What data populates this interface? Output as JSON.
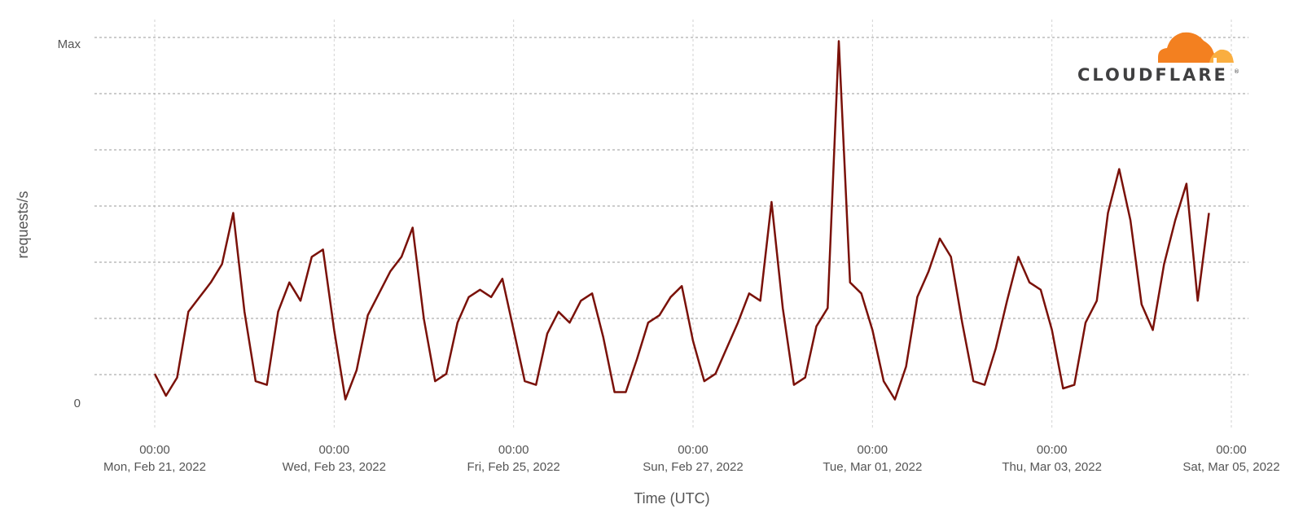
{
  "chart_data": {
    "type": "line",
    "title": "",
    "xlabel": "Time (UTC)",
    "ylabel": "requests/s",
    "y_tick_labels": [
      "0",
      "Max"
    ],
    "ylim": [
      0,
      1
    ],
    "xlim": [
      "2022-02-21T00:00",
      "2022-03-05T00:00"
    ],
    "x_ticks": [
      {
        "time": "00:00",
        "date": "Mon, Feb 21, 2022",
        "t": "2022-02-21T00:00"
      },
      {
        "time": "00:00",
        "date": "Wed, Feb 23, 2022",
        "t": "2022-02-23T00:00"
      },
      {
        "time": "00:00",
        "date": "Fri, Feb 25, 2022",
        "t": "2022-02-25T00:00"
      },
      {
        "time": "00:00",
        "date": "Sun, Feb 27, 2022",
        "t": "2022-02-27T00:00"
      },
      {
        "time": "00:00",
        "date": "Tue, Mar 01, 2022",
        "t": "2022-03-01T00:00"
      },
      {
        "time": "00:00",
        "date": "Thu, Mar 03, 2022",
        "t": "2022-03-03T00:00"
      },
      {
        "time": "00:00",
        "date": "Sat, Mar 05, 2022",
        "t": "2022-03-05T00:00"
      }
    ],
    "grid": true,
    "series": [
      {
        "color": "#7a1109",
        "x": [
          "2022-02-21T00:00",
          "2022-02-21T03:00",
          "2022-02-21T06:00",
          "2022-02-21T09:00",
          "2022-02-21T12:00",
          "2022-02-21T15:00",
          "2022-02-21T18:00",
          "2022-02-21T21:00",
          "2022-02-22T00:00",
          "2022-02-22T03:00",
          "2022-02-22T06:00",
          "2022-02-22T09:00",
          "2022-02-22T12:00",
          "2022-02-22T15:00",
          "2022-02-22T18:00",
          "2022-02-22T21:00",
          "2022-02-23T00:00",
          "2022-02-23T03:00",
          "2022-02-23T06:00",
          "2022-02-23T09:00",
          "2022-02-23T12:00",
          "2022-02-23T15:00",
          "2022-02-23T18:00",
          "2022-02-23T21:00",
          "2022-02-24T00:00",
          "2022-02-24T03:00",
          "2022-02-24T06:00",
          "2022-02-24T09:00",
          "2022-02-24T12:00",
          "2022-02-24T15:00",
          "2022-02-24T18:00",
          "2022-02-24T21:00",
          "2022-02-25T00:00",
          "2022-02-25T03:00",
          "2022-02-25T06:00",
          "2022-02-25T09:00",
          "2022-02-25T12:00",
          "2022-02-25T15:00",
          "2022-02-25T18:00",
          "2022-02-25T21:00",
          "2022-02-26T00:00",
          "2022-02-26T03:00",
          "2022-02-26T06:00",
          "2022-02-26T09:00",
          "2022-02-26T12:00",
          "2022-02-26T15:00",
          "2022-02-26T18:00",
          "2022-02-26T21:00",
          "2022-02-27T00:00",
          "2022-02-27T03:00",
          "2022-02-27T06:00",
          "2022-02-27T09:00",
          "2022-02-27T12:00",
          "2022-02-27T15:00",
          "2022-02-27T18:00",
          "2022-02-27T21:00",
          "2022-02-28T00:00",
          "2022-02-28T03:00",
          "2022-02-28T06:00",
          "2022-02-28T09:00",
          "2022-02-28T12:00",
          "2022-02-28T15:00",
          "2022-02-28T18:00",
          "2022-02-28T21:00",
          "2022-03-01T00:00",
          "2022-03-01T03:00",
          "2022-03-01T06:00",
          "2022-03-01T09:00",
          "2022-03-01T12:00",
          "2022-03-01T15:00",
          "2022-03-01T18:00",
          "2022-03-01T21:00",
          "2022-03-02T00:00",
          "2022-03-02T03:00",
          "2022-03-02T06:00",
          "2022-03-02T09:00",
          "2022-03-02T12:00",
          "2022-03-02T15:00",
          "2022-03-02T18:00",
          "2022-03-02T21:00",
          "2022-03-03T00:00",
          "2022-03-03T03:00",
          "2022-03-03T06:00",
          "2022-03-03T09:00",
          "2022-03-03T12:00",
          "2022-03-03T15:00",
          "2022-03-03T18:00",
          "2022-03-03T21:00",
          "2022-03-04T00:00",
          "2022-03-04T03:00",
          "2022-03-04T06:00",
          "2022-03-04T09:00",
          "2022-03-04T12:00",
          "2022-03-04T15:00",
          "2022-03-04T18:00"
        ],
        "y": [
          0.08,
          0.02,
          0.07,
          0.25,
          0.29,
          0.33,
          0.38,
          0.52,
          0.25,
          0.06,
          0.05,
          0.25,
          0.33,
          0.28,
          0.4,
          0.42,
          0.2,
          0.01,
          0.09,
          0.24,
          0.3,
          0.36,
          0.4,
          0.48,
          0.23,
          0.06,
          0.08,
          0.22,
          0.29,
          0.31,
          0.29,
          0.34,
          0.2,
          0.06,
          0.05,
          0.19,
          0.25,
          0.22,
          0.28,
          0.3,
          0.18,
          0.03,
          0.03,
          0.12,
          0.22,
          0.24,
          0.29,
          0.32,
          0.17,
          0.06,
          0.08,
          0.15,
          0.22,
          0.3,
          0.28,
          0.55,
          0.26,
          0.05,
          0.07,
          0.21,
          0.26,
          0.99,
          0.33,
          0.3,
          0.2,
          0.06,
          0.01,
          0.1,
          0.29,
          0.36,
          0.45,
          0.4,
          0.22,
          0.06,
          0.05,
          0.15,
          0.28,
          0.4,
          0.33,
          0.31,
          0.2,
          0.04,
          0.05,
          0.22,
          0.28,
          0.52,
          0.64,
          0.5,
          0.27,
          0.2,
          0.38,
          0.5,
          0.6,
          0.28,
          0.52
        ]
      }
    ]
  },
  "logo": {
    "wordmark": "CLOUDFLARE",
    "colors": {
      "primary": "#f38020",
      "secondary": "#faae40",
      "text": "#404041"
    }
  }
}
